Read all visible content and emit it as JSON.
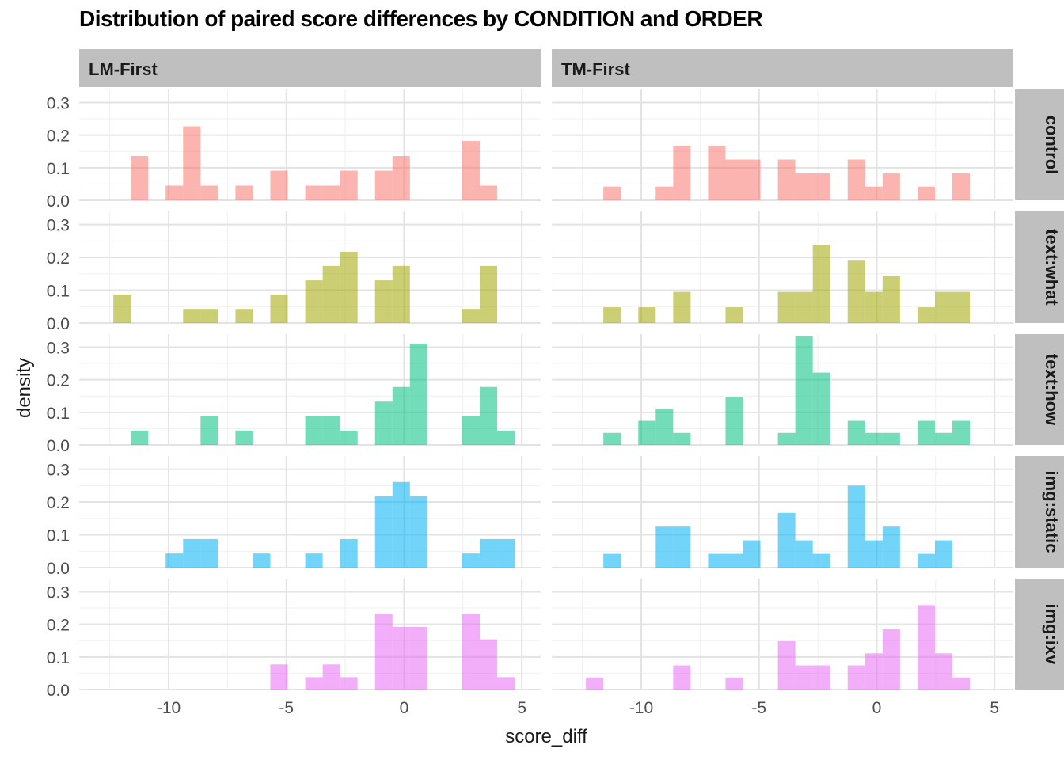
{
  "chart_data": {
    "type": "histogram",
    "title": "Distribution of paired score differences by CONDITION and ORDER",
    "xlabel": "score_diff",
    "ylabel": "density",
    "xlim": [
      -13.8,
      5.8
    ],
    "ylim": [
      0,
      0.34
    ],
    "x_ticks": [
      -10,
      -5,
      0,
      5
    ],
    "x_tick_labels": [
      "-10",
      "-5",
      "0",
      "5"
    ],
    "y_ticks": [
      0,
      0.1,
      0.2,
      0.3
    ],
    "y_tick_labels": [
      "0.0",
      "0.1",
      "0.2",
      "0.3"
    ],
    "bin_width": 0.741,
    "bin_origin": -12.35,
    "columns": [
      "LM-First",
      "TM-First"
    ],
    "rows": [
      "control",
      "text:what",
      "text:how",
      "img:static",
      "img:ixv"
    ],
    "colors": {
      "control": "#F8766D",
      "text:what": "#A3A500",
      "text:how": "#00BF7D",
      "img:static": "#00B0F6",
      "img:ixv": "#E76BF3"
    },
    "fill_opacity": 0.55,
    "grid": true,
    "legend": "none",
    "panels": [
      {
        "col": "LM-First",
        "row": "control",
        "bins": [
          {
            "x": -11.3,
            "density": 0.136
          },
          {
            "x": -9.8,
            "density": 0.045
          },
          {
            "x": -9.1,
            "density": 0.227
          },
          {
            "x": -8.4,
            "density": 0.045
          },
          {
            "x": -6.9,
            "density": 0.045
          },
          {
            "x": -5.4,
            "density": 0.091
          },
          {
            "x": -3.9,
            "density": 0.045
          },
          {
            "x": -3.2,
            "density": 0.045
          },
          {
            "x": -2.5,
            "density": 0.091
          },
          {
            "x": -1.0,
            "density": 0.091
          },
          {
            "x": -0.3,
            "density": 0.136
          },
          {
            "x": 2.2,
            "density": 0.182
          },
          {
            "x": 2.9,
            "density": 0.045
          }
        ]
      },
      {
        "col": "TM-First",
        "row": "control",
        "bins": [
          {
            "x": -11.3,
            "density": 0.042
          },
          {
            "x": -9.1,
            "density": 0.042
          },
          {
            "x": -8.4,
            "density": 0.167
          },
          {
            "x": -6.9,
            "density": 0.167
          },
          {
            "x": -6.2,
            "density": 0.125
          },
          {
            "x": -5.4,
            "density": 0.125
          },
          {
            "x": -3.9,
            "density": 0.125
          },
          {
            "x": -3.2,
            "density": 0.083
          },
          {
            "x": -2.5,
            "density": 0.083
          },
          {
            "x": -1.0,
            "density": 0.125
          },
          {
            "x": -0.3,
            "density": 0.042
          },
          {
            "x": 0.5,
            "density": 0.083
          },
          {
            "x": 2.0,
            "density": 0.042
          },
          {
            "x": 3.5,
            "density": 0.083
          }
        ]
      },
      {
        "col": "LM-First",
        "row": "text:what",
        "bins": [
          {
            "x": -12.0,
            "density": 0.087
          },
          {
            "x": -9.1,
            "density": 0.043
          },
          {
            "x": -8.4,
            "density": 0.043
          },
          {
            "x": -6.9,
            "density": 0.043
          },
          {
            "x": -5.4,
            "density": 0.087
          },
          {
            "x": -3.9,
            "density": 0.13
          },
          {
            "x": -3.2,
            "density": 0.174
          },
          {
            "x": -2.5,
            "density": 0.217
          },
          {
            "x": -1.0,
            "density": 0.13
          },
          {
            "x": -0.3,
            "density": 0.174
          },
          {
            "x": 2.2,
            "density": 0.043
          },
          {
            "x": 2.9,
            "density": 0.174
          }
        ]
      },
      {
        "col": "TM-First",
        "row": "text:what",
        "bins": [
          {
            "x": -11.3,
            "density": 0.048
          },
          {
            "x": -9.8,
            "density": 0.048
          },
          {
            "x": -8.4,
            "density": 0.095
          },
          {
            "x": -6.2,
            "density": 0.048
          },
          {
            "x": -3.9,
            "density": 0.095
          },
          {
            "x": -3.2,
            "density": 0.095
          },
          {
            "x": -2.5,
            "density": 0.238
          },
          {
            "x": -1.0,
            "density": 0.19
          },
          {
            "x": -0.3,
            "density": 0.095
          },
          {
            "x": 0.5,
            "density": 0.143
          },
          {
            "x": 2.0,
            "density": 0.048
          },
          {
            "x": 2.7,
            "density": 0.095
          },
          {
            "x": 3.5,
            "density": 0.095
          }
        ]
      },
      {
        "col": "LM-First",
        "row": "text:how",
        "bins": [
          {
            "x": -11.3,
            "density": 0.044
          },
          {
            "x": -8.4,
            "density": 0.089
          },
          {
            "x": -6.9,
            "density": 0.044
          },
          {
            "x": -3.9,
            "density": 0.089
          },
          {
            "x": -3.2,
            "density": 0.089
          },
          {
            "x": -2.5,
            "density": 0.044
          },
          {
            "x": -1.0,
            "density": 0.133
          },
          {
            "x": -0.3,
            "density": 0.178
          },
          {
            "x": 0.5,
            "density": 0.311
          },
          {
            "x": 2.2,
            "density": 0.089
          },
          {
            "x": 2.9,
            "density": 0.178
          },
          {
            "x": 3.7,
            "density": 0.044
          }
        ]
      },
      {
        "col": "TM-First",
        "row": "text:how",
        "bins": [
          {
            "x": -11.3,
            "density": 0.037
          },
          {
            "x": -9.8,
            "density": 0.074
          },
          {
            "x": -9.1,
            "density": 0.111
          },
          {
            "x": -8.4,
            "density": 0.037
          },
          {
            "x": -6.2,
            "density": 0.148
          },
          {
            "x": -3.9,
            "density": 0.037
          },
          {
            "x": -3.2,
            "density": 0.333
          },
          {
            "x": -2.5,
            "density": 0.222
          },
          {
            "x": -1.0,
            "density": 0.074
          },
          {
            "x": -0.3,
            "density": 0.037
          },
          {
            "x": 0.5,
            "density": 0.037
          },
          {
            "x": 2.0,
            "density": 0.074
          },
          {
            "x": 2.7,
            "density": 0.037
          },
          {
            "x": 3.5,
            "density": 0.074
          }
        ]
      },
      {
        "col": "LM-First",
        "row": "img:static",
        "bins": [
          {
            "x": -9.8,
            "density": 0.043
          },
          {
            "x": -9.1,
            "density": 0.087
          },
          {
            "x": -8.4,
            "density": 0.087
          },
          {
            "x": -6.2,
            "density": 0.043
          },
          {
            "x": -3.9,
            "density": 0.043
          },
          {
            "x": -2.5,
            "density": 0.087
          },
          {
            "x": -1.0,
            "density": 0.217
          },
          {
            "x": -0.3,
            "density": 0.261
          },
          {
            "x": 0.5,
            "density": 0.217
          },
          {
            "x": 2.2,
            "density": 0.043
          },
          {
            "x": 2.9,
            "density": 0.087
          },
          {
            "x": 3.7,
            "density": 0.087
          }
        ]
      },
      {
        "col": "TM-First",
        "row": "img:static",
        "bins": [
          {
            "x": -11.3,
            "density": 0.042
          },
          {
            "x": -9.1,
            "density": 0.125
          },
          {
            "x": -8.4,
            "density": 0.125
          },
          {
            "x": -6.9,
            "density": 0.042
          },
          {
            "x": -6.2,
            "density": 0.042
          },
          {
            "x": -5.4,
            "density": 0.083
          },
          {
            "x": -3.9,
            "density": 0.167
          },
          {
            "x": -3.2,
            "density": 0.083
          },
          {
            "x": -2.5,
            "density": 0.042
          },
          {
            "x": -1.0,
            "density": 0.25
          },
          {
            "x": -0.3,
            "density": 0.083
          },
          {
            "x": 0.5,
            "density": 0.125
          },
          {
            "x": 2.0,
            "density": 0.042
          },
          {
            "x": 2.7,
            "density": 0.083
          }
        ]
      },
      {
        "col": "LM-First",
        "row": "img:ixv",
        "bins": [
          {
            "x": -5.4,
            "density": 0.077
          },
          {
            "x": -3.9,
            "density": 0.038
          },
          {
            "x": -3.2,
            "density": 0.077
          },
          {
            "x": -2.5,
            "density": 0.038
          },
          {
            "x": -1.0,
            "density": 0.231
          },
          {
            "x": -0.3,
            "density": 0.192
          },
          {
            "x": 0.5,
            "density": 0.192
          },
          {
            "x": 2.2,
            "density": 0.231
          },
          {
            "x": 2.9,
            "density": 0.154
          },
          {
            "x": 3.7,
            "density": 0.038
          }
        ]
      },
      {
        "col": "TM-First",
        "row": "img:ixv",
        "bins": [
          {
            "x": -12.0,
            "density": 0.037
          },
          {
            "x": -8.4,
            "density": 0.074
          },
          {
            "x": -6.2,
            "density": 0.037
          },
          {
            "x": -3.9,
            "density": 0.148
          },
          {
            "x": -3.2,
            "density": 0.074
          },
          {
            "x": -2.5,
            "density": 0.074
          },
          {
            "x": -1.0,
            "density": 0.074
          },
          {
            "x": -0.3,
            "density": 0.111
          },
          {
            "x": 0.5,
            "density": 0.185
          },
          {
            "x": 2.0,
            "density": 0.259
          },
          {
            "x": 2.7,
            "density": 0.111
          },
          {
            "x": 3.5,
            "density": 0.037
          }
        ]
      }
    ]
  }
}
